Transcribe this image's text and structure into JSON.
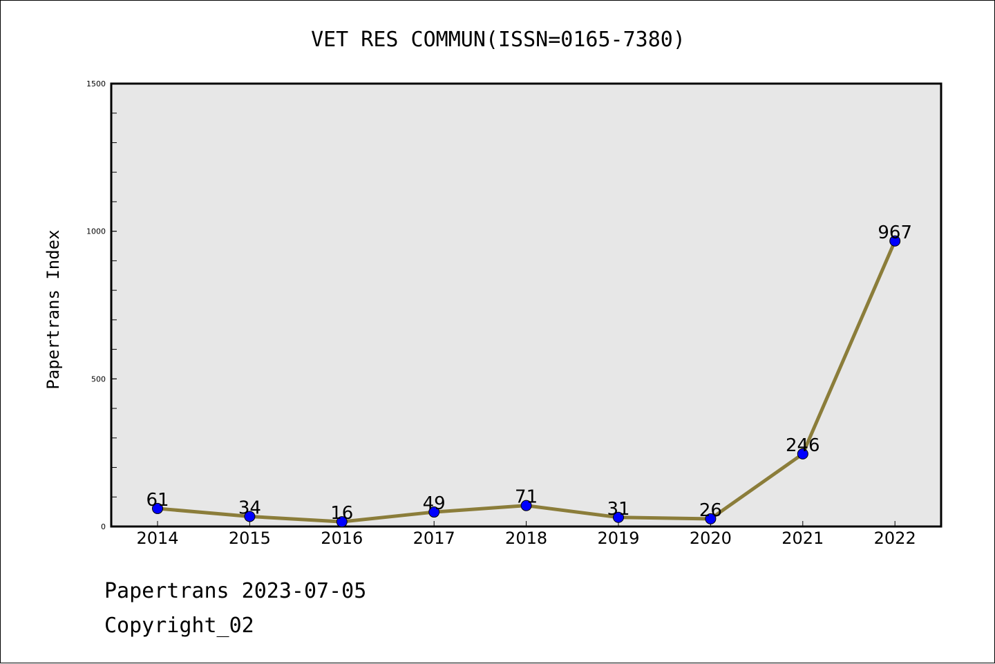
{
  "chart_data": {
    "type": "line",
    "title": "VET RES COMMUN(ISSN=0165-7380)",
    "ylabel": "Papertrans Index",
    "xlabel": "",
    "ylim": [
      0,
      1500
    ],
    "yticks": [
      "0",
      "500",
      "1000",
      "1500"
    ],
    "categories": [
      "2014",
      "2015",
      "2016",
      "2017",
      "2018",
      "2019",
      "2020",
      "2021",
      "2022"
    ],
    "series": [
      {
        "values": [
          61,
          34,
          16,
          49,
          71,
          31,
          26,
          246,
          967
        ]
      }
    ],
    "line_color": "#8B7D3A",
    "marker_color": "#0000FF",
    "plot_background": "#E7E7E7",
    "grid": false
  },
  "footer": {
    "line1": "Papertrans 2023-07-05",
    "line2": "Copyright_02"
  }
}
